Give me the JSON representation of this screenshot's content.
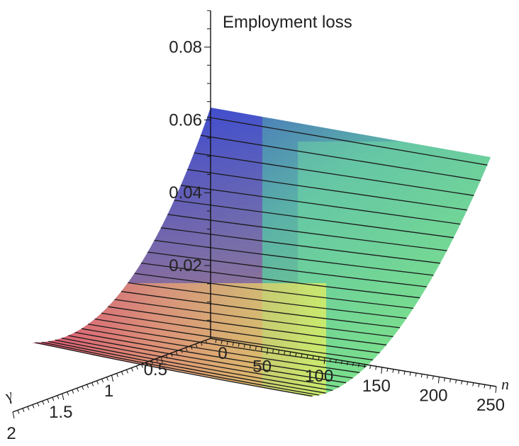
{
  "chart_data": {
    "type": "surface3d",
    "title": "",
    "zlabel": "Employment loss",
    "xlabel": "n",
    "ylabel": "γ",
    "z_ticks": [
      "0.02",
      "0.04",
      "0.06",
      "0.08"
    ],
    "n_ticks": [
      "50",
      "100",
      "150",
      "200",
      "250"
    ],
    "gamma_ticks": [
      "0.5",
      "1",
      "1.5",
      "2"
    ],
    "n_range": [
      0,
      250
    ],
    "gamma_range": [
      0,
      2
    ],
    "zlim": [
      0,
      0.09
    ],
    "surface": {
      "peak_value": 0.062,
      "value_at_far_edge": 0.05,
      "value_at_low_edge": 0.0
    },
    "contour_lines": 27,
    "colors": {
      "high": "#3a3fd0",
      "low": "#f06a6a",
      "mid": "#6ad98a",
      "corner": "#e8ee60"
    }
  }
}
